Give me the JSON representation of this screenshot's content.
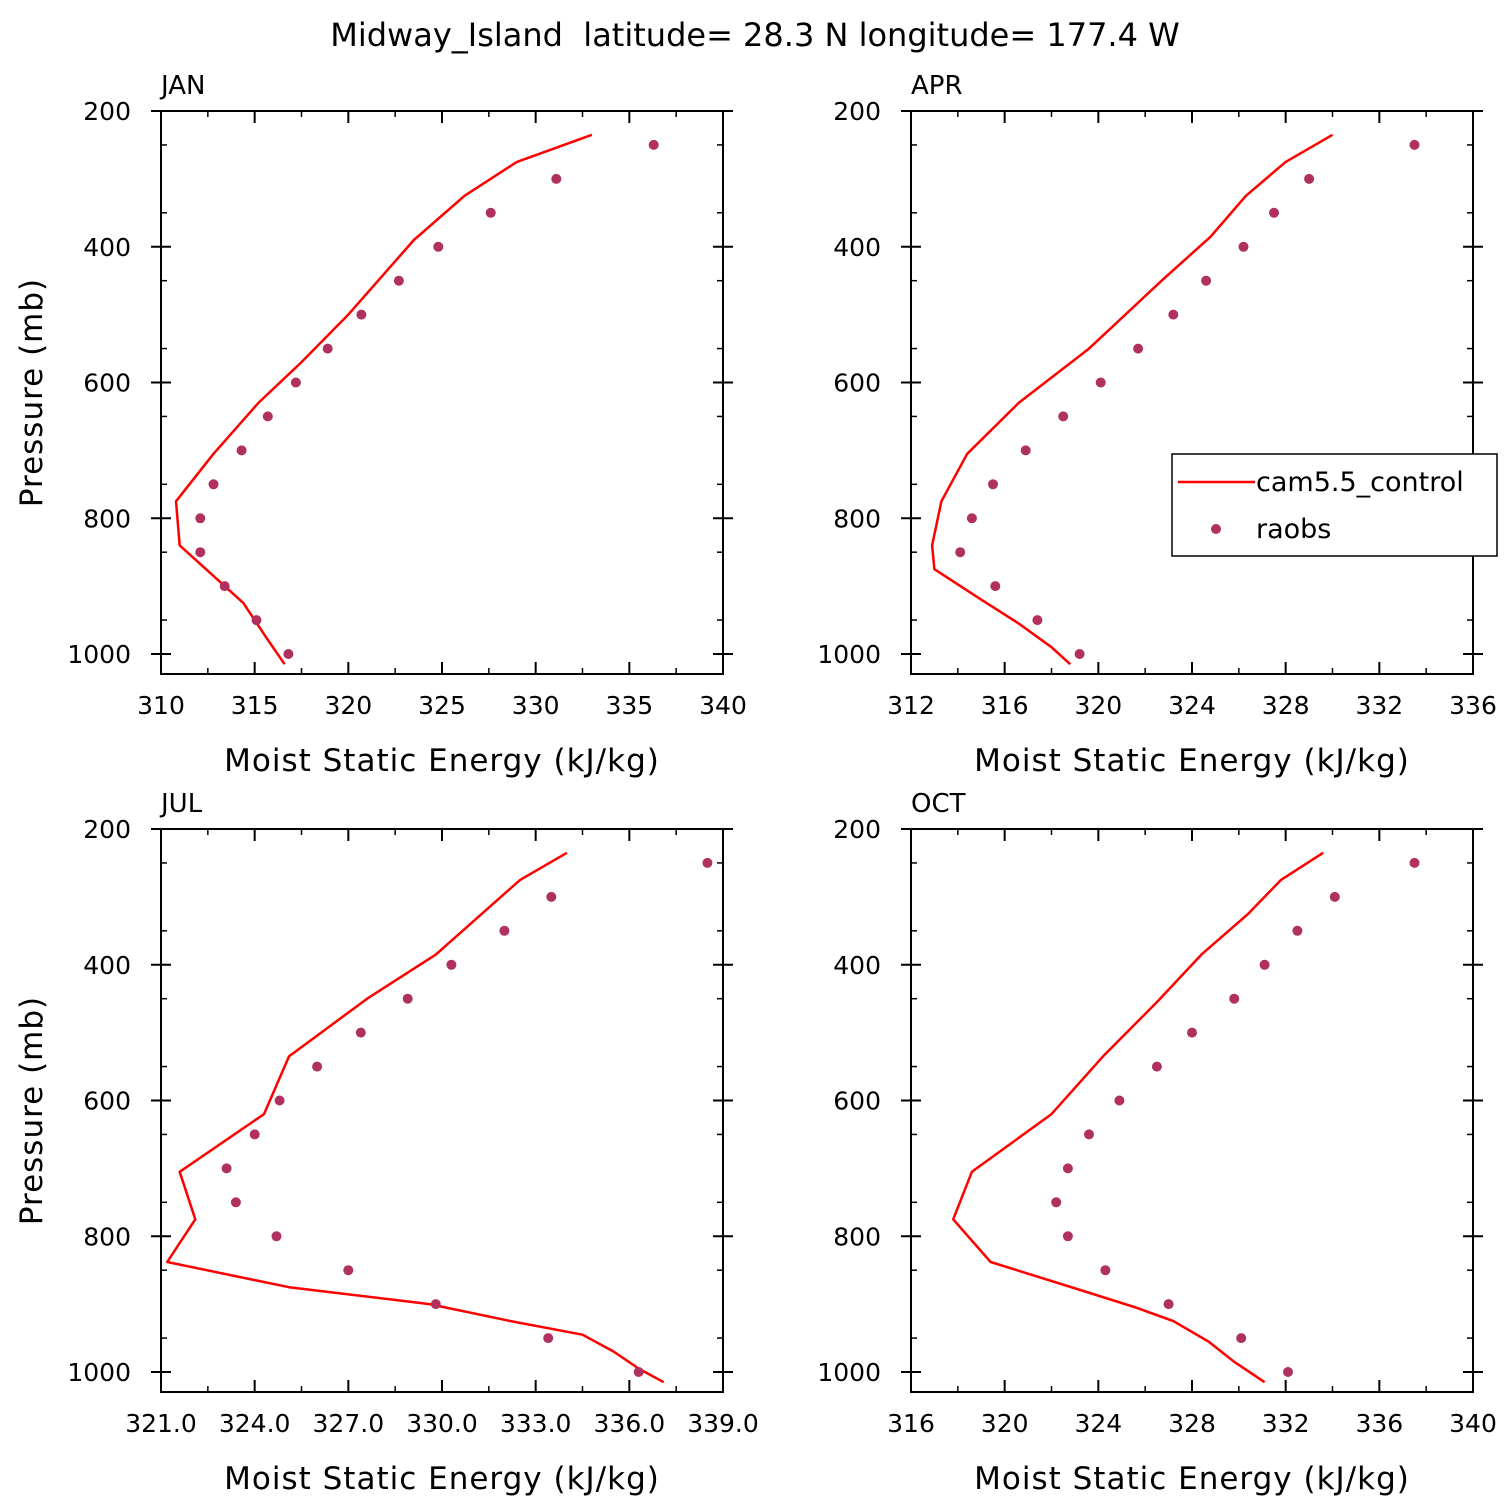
{
  "title": "Midway_Island  latitude= 28.3 N longitude= 177.4 W",
  "legend": {
    "line_label": "cam5.5_control",
    "dot_label": "raobs"
  },
  "colors": {
    "line": "#ff0000",
    "dots": "#b03060",
    "axis": "#000000"
  },
  "chart_data": [
    {
      "type": "line",
      "panel": "JAN",
      "xlabel": "Moist Static Energy (kJ/kg)",
      "ylabel": "Pressure (mb)",
      "xlim": [
        310,
        340
      ],
      "ylim": [
        1000,
        200
      ],
      "xticks": [
        "310",
        "315",
        "320",
        "325",
        "330",
        "335",
        "340"
      ],
      "yticks": [
        "200",
        "400",
        "600",
        "800",
        "1000"
      ],
      "series": [
        {
          "name": "cam5.5_control",
          "style": "line",
          "x": [
            316.6,
            315.6,
            314.4,
            312.4,
            311.0,
            310.8,
            312.8,
            315.2,
            317.5,
            320.0,
            323.5,
            326.2,
            329.0,
            333.0
          ],
          "y": [
            1015,
            975,
            925,
            875,
            840,
            775,
            705,
            630,
            570,
            500,
            390,
            325,
            275,
            235
          ]
        },
        {
          "name": "raobs",
          "style": "dots",
          "x": [
            316.8,
            315.1,
            313.4,
            312.1,
            312.1,
            312.8,
            314.3,
            315.7,
            317.2,
            318.9,
            320.7,
            322.7,
            324.8,
            327.6,
            331.1,
            336.3
          ],
          "y": [
            1000,
            950,
            900,
            850,
            800,
            750,
            700,
            650,
            600,
            550,
            500,
            450,
            400,
            350,
            300,
            250
          ]
        }
      ]
    },
    {
      "type": "line",
      "panel": "APR",
      "xlabel": "Moist Static Energy (kJ/kg)",
      "ylabel": "",
      "xlim": [
        312,
        336
      ],
      "ylim": [
        1000,
        200
      ],
      "xticks": [
        "312",
        "316",
        "320",
        "324",
        "328",
        "332",
        "336"
      ],
      "yticks": [
        "200",
        "400",
        "600",
        "800",
        "1000"
      ],
      "series": [
        {
          "name": "cam5.5_control",
          "style": "line",
          "x": [
            318.8,
            318.0,
            316.6,
            315.0,
            313.0,
            312.9,
            313.3,
            314.4,
            316.6,
            319.6,
            322.7,
            324.8,
            326.3,
            328.0,
            330.0
          ],
          "y": [
            1015,
            990,
            955,
            920,
            875,
            840,
            775,
            705,
            630,
            550,
            450,
            385,
            325,
            275,
            235
          ]
        },
        {
          "name": "raobs",
          "style": "dots",
          "x": [
            319.2,
            317.4,
            315.6,
            314.1,
            314.6,
            315.5,
            316.9,
            318.5,
            320.1,
            321.7,
            323.2,
            324.6,
            326.2,
            327.5,
            329.0,
            333.5
          ],
          "y": [
            1000,
            950,
            900,
            850,
            800,
            750,
            700,
            650,
            600,
            550,
            500,
            450,
            400,
            350,
            300,
            250
          ]
        }
      ]
    },
    {
      "type": "line",
      "panel": "JUL",
      "xlabel": "Moist Static Energy (kJ/kg)",
      "ylabel": "Pressure (mb)",
      "xlim": [
        321.0,
        339.0
      ],
      "ylim": [
        1000,
        200
      ],
      "xticks": [
        "321.0",
        "324.0",
        "327.0",
        "330.0",
        "333.0",
        "336.0",
        "339.0"
      ],
      "yticks": [
        "200",
        "400",
        "600",
        "800",
        "1000"
      ],
      "series": [
        {
          "name": "cam5.5_control",
          "style": "line",
          "x": [
            337.1,
            336.3,
            335.5,
            334.5,
            332.2,
            329.6,
            325.1,
            321.2,
            322.1,
            321.6,
            324.3,
            325.1,
            327.6,
            329.8,
            332.5,
            334.0
          ],
          "y": [
            1015,
            995,
            970,
            945,
            925,
            900,
            875,
            838,
            775,
            705,
            620,
            535,
            450,
            385,
            275,
            235
          ]
        },
        {
          "name": "raobs",
          "style": "dots",
          "x": [
            336.3,
            333.4,
            329.8,
            327.0,
            324.7,
            323.4,
            323.1,
            324.0,
            324.8,
            326.0,
            327.4,
            328.9,
            330.3,
            332.0,
            333.5,
            338.5
          ],
          "y": [
            1000,
            950,
            900,
            850,
            800,
            750,
            700,
            650,
            600,
            550,
            500,
            450,
            400,
            350,
            300,
            250
          ]
        }
      ]
    },
    {
      "type": "line",
      "panel": "OCT",
      "xlabel": "Moist Static Energy (kJ/kg)",
      "ylabel": "",
      "xlim": [
        316,
        340
      ],
      "ylim": [
        1000,
        200
      ],
      "xticks": [
        "316",
        "320",
        "324",
        "328",
        "332",
        "336",
        "340"
      ],
      "yticks": [
        "200",
        "400",
        "600",
        "800",
        "1000"
      ],
      "series": [
        {
          "name": "cam5.5_control",
          "style": "line",
          "x": [
            331.1,
            329.8,
            328.7,
            327.2,
            325.6,
            323.3,
            319.4,
            317.8,
            318.6,
            322.0,
            324.2,
            326.5,
            328.4,
            330.4,
            331.8,
            333.6
          ],
          "y": [
            1015,
            985,
            955,
            925,
            905,
            880,
            838,
            775,
            705,
            620,
            535,
            455,
            385,
            325,
            275,
            235
          ]
        },
        {
          "name": "raobs",
          "style": "dots",
          "x": [
            332.1,
            330.1,
            327.0,
            324.3,
            322.7,
            322.2,
            322.7,
            323.6,
            324.9,
            326.5,
            328.0,
            329.8,
            331.1,
            332.5,
            334.1,
            337.5
          ],
          "y": [
            1000,
            950,
            900,
            850,
            800,
            750,
            700,
            650,
            600,
            550,
            500,
            450,
            400,
            350,
            300,
            250
          ]
        }
      ]
    }
  ]
}
